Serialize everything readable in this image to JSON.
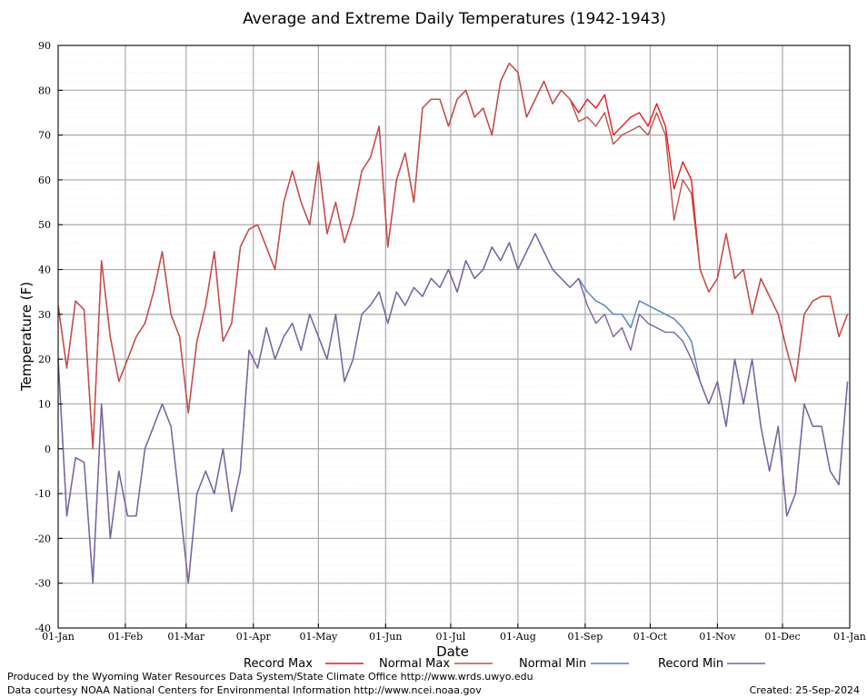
{
  "chart_data": {
    "type": "line",
    "title": "Average and Extreme Daily Temperatures (1942-1943)",
    "xlabel": "Date",
    "ylabel": "Temperature (F)",
    "footer_left": [
      "Produced by the Wyoming Water Resources Data System/State Climate Office http://www.wrds.uwyo.edu",
      "Data courtesy NOAA National Centers for Environmental Information http://www.ncei.noaa.gov"
    ],
    "footer_right": "Created:  25-Sep-2024",
    "grid": true,
    "xlim": [
      0,
      365
    ],
    "ylim": [
      -40,
      90
    ],
    "yticks": [
      -40,
      -30,
      -20,
      -10,
      0,
      10,
      20,
      30,
      40,
      50,
      60,
      70,
      80,
      90
    ],
    "xticks": [
      {
        "value": 0,
        "label": "01-Jan"
      },
      {
        "value": 31,
        "label": "01-Feb"
      },
      {
        "value": 59,
        "label": "01-Mar"
      },
      {
        "value": 90,
        "label": "01-Apr"
      },
      {
        "value": 120,
        "label": "01-May"
      },
      {
        "value": 151,
        "label": "01-Jun"
      },
      {
        "value": 181,
        "label": "01-Jul"
      },
      {
        "value": 212,
        "label": "01-Aug"
      },
      {
        "value": 243,
        "label": "01-Sep"
      },
      {
        "value": 273,
        "label": "01-Oct"
      },
      {
        "value": 304,
        "label": "01-Nov"
      },
      {
        "value": 334,
        "label": "01-Dec"
      },
      {
        "value": 365,
        "label": "01-Jan"
      }
    ],
    "x": [
      0,
      4,
      8,
      12,
      16,
      20,
      24,
      28,
      32,
      36,
      40,
      44,
      48,
      52,
      56,
      60,
      64,
      68,
      72,
      76,
      80,
      84,
      88,
      92,
      96,
      100,
      104,
      108,
      112,
      116,
      120,
      124,
      128,
      132,
      136,
      140,
      144,
      148,
      152,
      156,
      160,
      164,
      168,
      172,
      176,
      180,
      184,
      188,
      192,
      196,
      200,
      204,
      208,
      212,
      216,
      220,
      224,
      228,
      232,
      236,
      240,
      244,
      248,
      252,
      256,
      260,
      264,
      268,
      272,
      276,
      280,
      284,
      288,
      292,
      296,
      300,
      304,
      308,
      312,
      316,
      320,
      324,
      328,
      332,
      336,
      340,
      344,
      348,
      352,
      356,
      360,
      364
    ],
    "series": [
      {
        "name": "Record Max",
        "color": "#e8191b",
        "values": [
          32,
          18,
          33,
          31,
          0,
          42,
          25,
          15,
          20,
          25,
          28,
          35,
          44,
          30,
          25,
          8,
          24,
          32,
          44,
          24,
          28,
          45,
          49,
          50,
          45,
          40,
          55,
          62,
          55,
          50,
          64,
          48,
          55,
          46,
          52,
          62,
          65,
          72,
          45,
          60,
          66,
          55,
          76,
          78,
          78,
          72,
          78,
          80,
          74,
          76,
          70,
          82,
          86,
          84,
          74,
          78,
          82,
          77,
          80,
          78,
          75,
          78,
          76,
          79,
          70,
          72,
          74,
          75,
          72,
          77,
          72,
          58,
          64,
          60,
          40,
          35,
          38,
          48,
          38,
          40,
          30,
          38,
          34,
          30,
          22,
          15,
          30,
          33,
          34,
          34,
          25,
          30
        ]
      },
      {
        "name": "Normal Max",
        "color": "#c0504d",
        "values": [
          32,
          18,
          33,
          31,
          0,
          42,
          25,
          15,
          20,
          25,
          28,
          35,
          44,
          30,
          25,
          8,
          24,
          32,
          44,
          24,
          28,
          45,
          49,
          50,
          45,
          40,
          55,
          62,
          55,
          50,
          64,
          48,
          55,
          46,
          52,
          62,
          65,
          72,
          45,
          60,
          66,
          55,
          76,
          78,
          78,
          72,
          78,
          80,
          74,
          76,
          70,
          82,
          86,
          84,
          74,
          78,
          82,
          77,
          80,
          78,
          73,
          74,
          72,
          75,
          68,
          70,
          71,
          72,
          70,
          75,
          70,
          51,
          60,
          57,
          40,
          35,
          38,
          48,
          38,
          40,
          30,
          38,
          34,
          30,
          22,
          15,
          30,
          33,
          34,
          34,
          25,
          30
        ]
      },
      {
        "name": "Normal Min",
        "color": "#4f81bd",
        "values": [
          20,
          -15,
          -2,
          -3,
          -30,
          10,
          -20,
          -5,
          -15,
          -15,
          0,
          5,
          10,
          5,
          -12,
          -30,
          -10,
          -5,
          -10,
          0,
          -14,
          -5,
          22,
          18,
          27,
          20,
          25,
          28,
          22,
          30,
          25,
          20,
          30,
          15,
          20,
          30,
          32,
          35,
          28,
          35,
          32,
          36,
          34,
          38,
          36,
          40,
          35,
          42,
          38,
          40,
          45,
          42,
          46,
          40,
          44,
          48,
          44,
          40,
          38,
          36,
          38,
          35,
          33,
          32,
          30,
          30,
          27,
          33,
          32,
          31,
          30,
          29,
          27,
          24,
          15,
          10,
          15,
          5,
          20,
          10,
          20,
          5,
          -5,
          5,
          -15,
          -10,
          10,
          5,
          5,
          -5,
          -8,
          15
        ]
      },
      {
        "name": "Record Min",
        "color": "#7d61a0",
        "values": [
          20,
          -15,
          -2,
          -3,
          -30,
          10,
          -20,
          -5,
          -15,
          -15,
          0,
          5,
          10,
          5,
          -12,
          -30,
          -10,
          -5,
          -10,
          0,
          -14,
          -5,
          22,
          18,
          27,
          20,
          25,
          28,
          22,
          30,
          25,
          20,
          30,
          15,
          20,
          30,
          32,
          35,
          28,
          35,
          32,
          36,
          34,
          38,
          36,
          40,
          35,
          42,
          38,
          40,
          45,
          42,
          46,
          40,
          44,
          48,
          44,
          40,
          38,
          36,
          38,
          32,
          28,
          30,
          25,
          27,
          22,
          30,
          28,
          27,
          26,
          26,
          24,
          20,
          15,
          10,
          15,
          5,
          20,
          10,
          20,
          5,
          -5,
          5,
          -15,
          -10,
          10,
          5,
          5,
          -5,
          -8,
          15
        ]
      }
    ]
  }
}
